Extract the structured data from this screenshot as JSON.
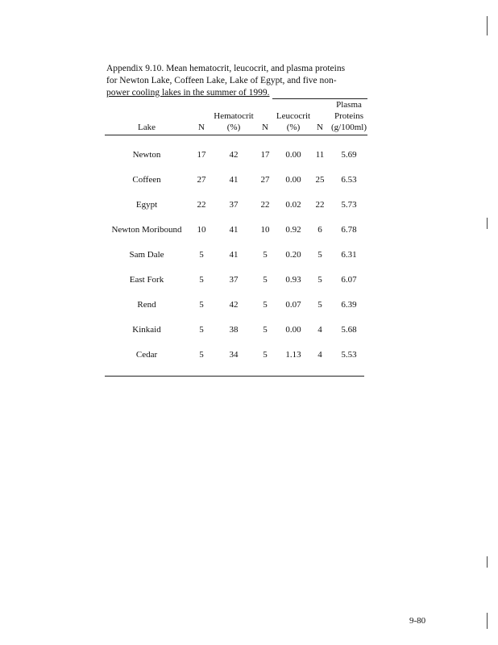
{
  "caption": {
    "line1": "Appendix 9.10.  Mean hematocrit, leucocrit, and plasma proteins",
    "line2": "for Newton Lake, Coffeen Lake, Lake of Egypt, and five non-",
    "line3": "power cooling lakes in the summer of 1999."
  },
  "table": {
    "header_row1": [
      "",
      "",
      "",
      "",
      "",
      "",
      "Plasma"
    ],
    "header_row2": [
      "",
      "",
      "Hematocrit",
      "",
      "Leucocrit",
      "",
      "Proteins"
    ],
    "header_row3": [
      "Lake",
      "N",
      "(%)",
      "N",
      "(%)",
      "N",
      "(g/100ml)"
    ],
    "rows": [
      [
        "Newton",
        "17",
        "42",
        "17",
        "0.00",
        "11",
        "5.69"
      ],
      [
        "Coffeen",
        "27",
        "41",
        "27",
        "0.00",
        "25",
        "6.53"
      ],
      [
        "Egypt",
        "22",
        "37",
        "22",
        "0.02",
        "22",
        "5.73"
      ],
      [
        "Newton Moribound",
        "10",
        "41",
        "10",
        "0.92",
        "6",
        "6.78"
      ],
      [
        "Sam Dale",
        "5",
        "41",
        "5",
        "0.20",
        "5",
        "6.31"
      ],
      [
        "East Fork",
        "5",
        "37",
        "5",
        "0.93",
        "5",
        "6.07"
      ],
      [
        "Rend",
        "5",
        "42",
        "5",
        "0.07",
        "5",
        "6.39"
      ],
      [
        "Kinkaid",
        "5",
        "38",
        "5",
        "0.00",
        "4",
        "5.68"
      ],
      [
        "Cedar",
        "5",
        "34",
        "5",
        "1.13",
        "4",
        "5.53"
      ]
    ]
  },
  "page_number": "9-80"
}
